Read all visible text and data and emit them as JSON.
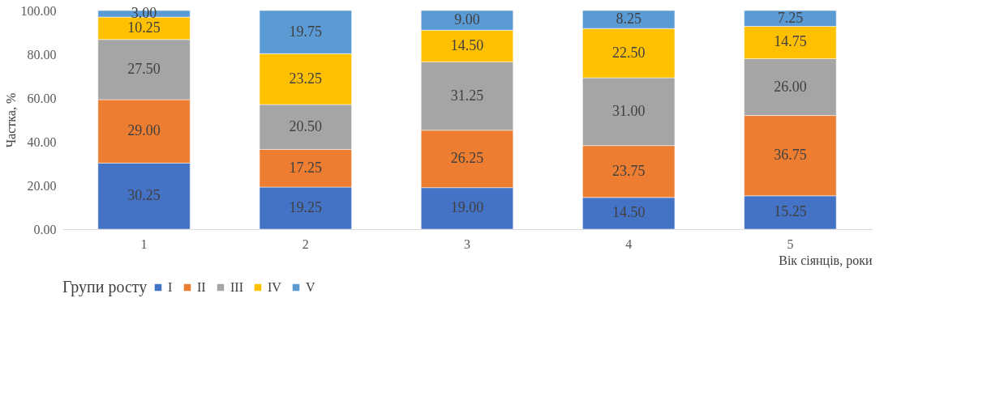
{
  "chart_data": {
    "type": "bar",
    "stacked": true,
    "xlabel": "Вік сіянців, роки",
    "ylabel": "Частка, %",
    "legend_title": "Групи росту",
    "categories": [
      "1",
      "2",
      "3",
      "4",
      "5"
    ],
    "series": [
      {
        "name": "I",
        "color": "#4472c4",
        "values": [
          30.25,
          19.25,
          19.0,
          14.5,
          15.25
        ],
        "value_labels": [
          "30.25",
          "19.25",
          "19.00",
          "14.50",
          "15.25"
        ]
      },
      {
        "name": "II",
        "color": "#ed7d31",
        "values": [
          29.0,
          17.25,
          26.25,
          23.75,
          36.75
        ],
        "value_labels": [
          "29.00",
          "17.25",
          "26.25",
          "23.75",
          "36.75"
        ]
      },
      {
        "name": "III",
        "color": "#a5a5a5",
        "values": [
          27.5,
          20.5,
          31.25,
          31.0,
          26.0
        ],
        "value_labels": [
          "27.50",
          "20.50",
          "31.25",
          "31.00",
          "26.00"
        ]
      },
      {
        "name": "IV",
        "color": "#ffc000",
        "values": [
          10.25,
          23.25,
          14.5,
          22.5,
          14.75
        ],
        "value_labels": [
          "10.25",
          "23.25",
          "14.50",
          "22.50",
          "14.75"
        ]
      },
      {
        "name": "V",
        "color": "#5b9bd5",
        "values": [
          3.0,
          19.75,
          9.0,
          8.25,
          7.25
        ],
        "value_labels": [
          "3.00",
          "19.75",
          "9.00",
          "8.25",
          "7.25"
        ]
      }
    ],
    "ylim": [
      0,
      100
    ],
    "yticks": [
      {
        "value": 0,
        "label": "0.00"
      },
      {
        "value": 20,
        "label": "20.00"
      },
      {
        "value": 40,
        "label": "40.00"
      },
      {
        "value": 60,
        "label": "60.00"
      },
      {
        "value": 80,
        "label": "80.00"
      },
      {
        "value": 100,
        "label": "100.00"
      }
    ],
    "grid": false,
    "legend": "bottom"
  }
}
